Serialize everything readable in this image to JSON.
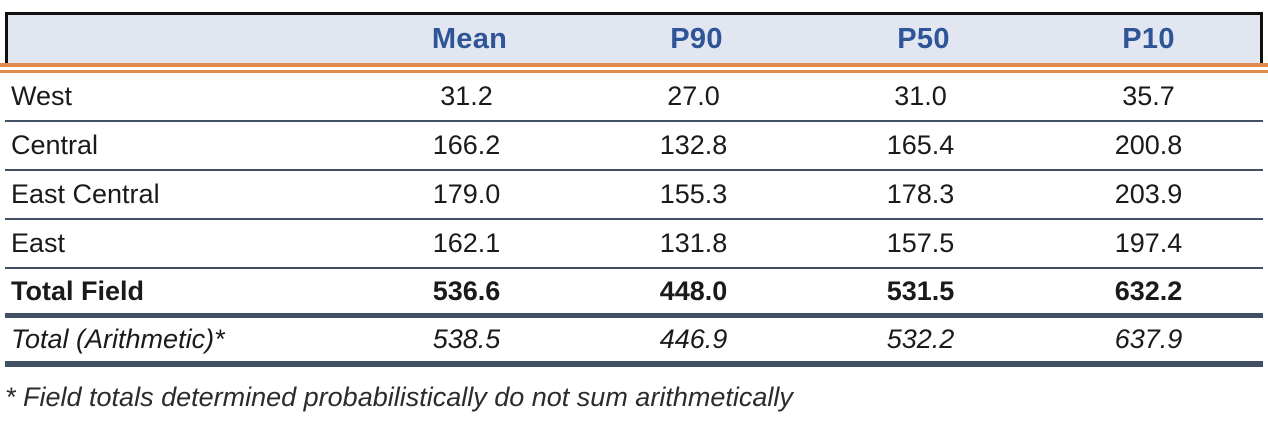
{
  "table": {
    "columns": [
      "",
      "Mean",
      "P90",
      "P50",
      "P10"
    ],
    "rows": [
      {
        "name": "West",
        "values": [
          "31.2",
          "27.0",
          "31.0",
          "35.7"
        ]
      },
      {
        "name": "Central",
        "values": [
          "166.2",
          "132.8",
          "165.4",
          "200.8"
        ]
      },
      {
        "name": "East Central",
        "values": [
          "179.0",
          "155.3",
          "178.3",
          "203.9"
        ]
      },
      {
        "name": "East",
        "values": [
          "162.1",
          "131.8",
          "157.5",
          "197.4"
        ]
      },
      {
        "name": "Total Field",
        "values": [
          "536.6",
          "448.0",
          "531.5",
          "632.2"
        ]
      },
      {
        "name": "Total (Arithmetic)*",
        "values": [
          "538.5",
          "446.9",
          "532.2",
          "637.9"
        ]
      }
    ],
    "footnote": "* Field totals determined probabilistically do not sum arithmetically"
  },
  "colors": {
    "header_background": "#e2e6f0",
    "header_text": "#2e5597",
    "accent_rule_orange": "#e08a50",
    "row_rule_slate": "#415163",
    "header_border_black": "#101010",
    "body_text": "#1a1a1a"
  }
}
